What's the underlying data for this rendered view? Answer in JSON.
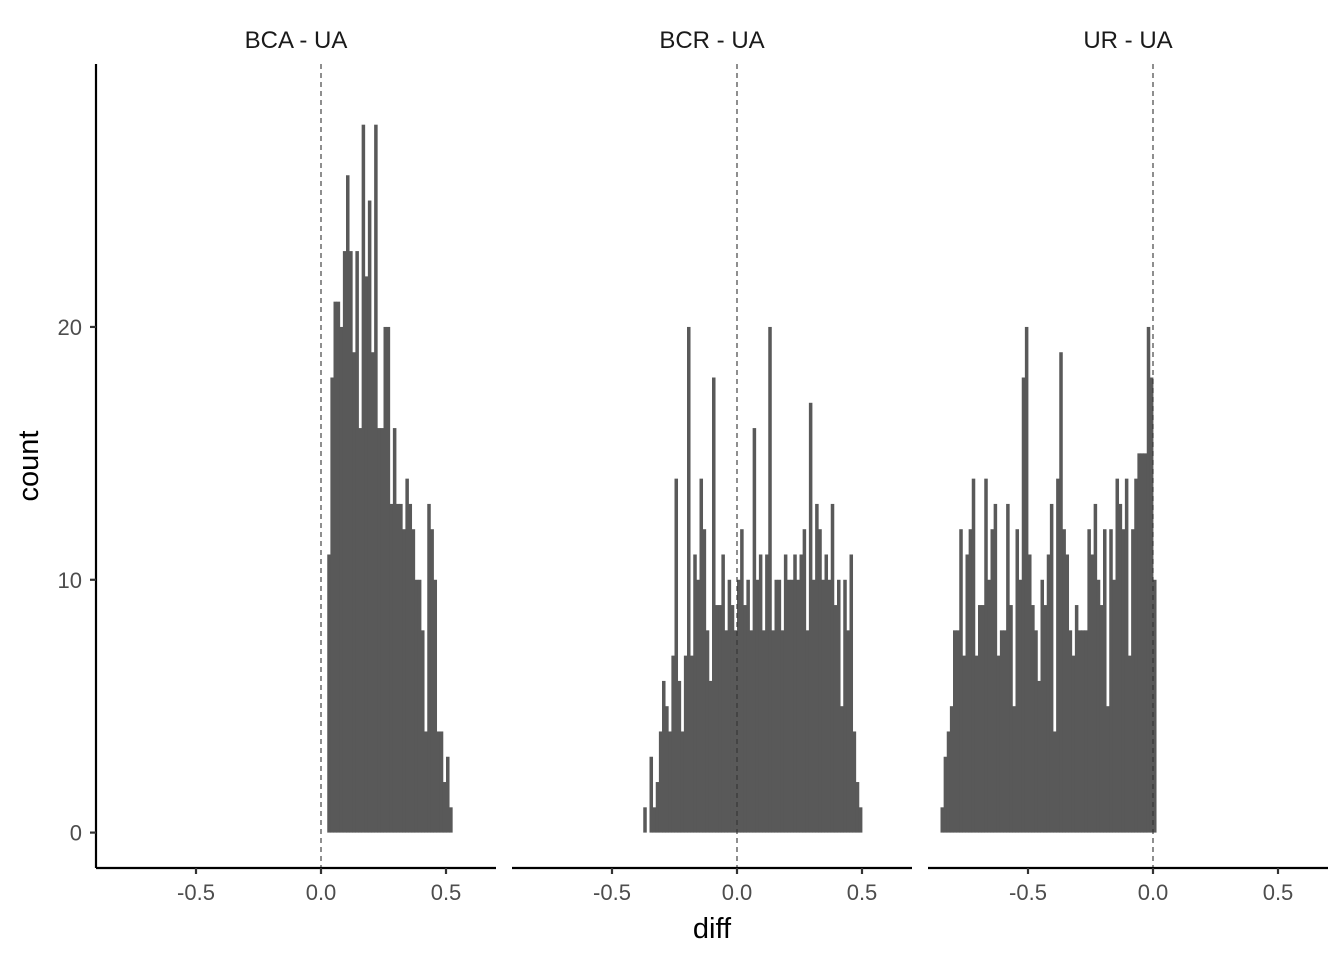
{
  "chart_data": {
    "type": "histogram",
    "xlabel": "diff",
    "ylabel": "count",
    "xlim": [
      -0.9,
      0.7
    ],
    "ylim": [
      -1.4,
      30.4
    ],
    "x_ticks": [
      -0.5,
      0.0,
      0.5
    ],
    "x_tick_labels": [
      "-0.5",
      "0.0",
      "0.5"
    ],
    "y_ticks": [
      0,
      10,
      20
    ],
    "y_tick_labels": [
      "0",
      "10",
      "20"
    ],
    "bin_width": 0.0125,
    "reference_line_x": 0,
    "bar_color": "#595959",
    "panels": [
      {
        "title": "BCA - UA",
        "bin_start": 0.025,
        "counts": [
          11,
          18,
          21,
          21,
          20,
          23,
          26,
          23,
          19,
          23,
          16,
          28,
          22,
          25,
          19,
          28,
          16,
          16,
          20,
          20,
          13,
          16,
          13,
          13,
          12,
          14,
          13,
          12,
          10,
          10,
          8,
          4,
          13,
          12,
          10,
          4,
          4,
          2,
          3,
          1
        ]
      },
      {
        "title": "BCR - UA",
        "bin_start": -0.375,
        "counts": [
          1,
          0,
          3,
          1,
          2,
          4,
          6,
          5,
          4,
          7,
          14,
          6,
          4,
          7,
          20,
          7,
          11,
          10,
          14,
          12,
          8,
          6,
          18,
          9,
          9,
          11,
          8,
          10,
          9,
          8,
          10,
          12,
          9,
          10,
          8,
          16,
          10,
          11,
          8,
          11,
          20,
          8,
          10,
          10,
          8,
          11,
          10,
          10,
          11,
          10,
          11,
          12,
          8,
          17,
          10,
          13,
          12,
          10,
          11,
          10,
          13,
          9,
          10,
          5,
          10,
          8,
          11,
          4,
          2,
          1
        ]
      },
      {
        "title": "UR - UA",
        "bin_start": -0.85,
        "counts": [
          1,
          3,
          4,
          5,
          8,
          8,
          12,
          7,
          11,
          12,
          14,
          7,
          9,
          9,
          14,
          10,
          12,
          13,
          7,
          8,
          8,
          13,
          9,
          5,
          12,
          10,
          18,
          20,
          11,
          9,
          8,
          6,
          10,
          9,
          11,
          13,
          4,
          14,
          19,
          12,
          11,
          8,
          7,
          9,
          8,
          8,
          8,
          12,
          11,
          13,
          10,
          9,
          12,
          5,
          12,
          10,
          14,
          13,
          12,
          14,
          7,
          12,
          14,
          15,
          15,
          15,
          20,
          18,
          10
        ]
      }
    ]
  }
}
